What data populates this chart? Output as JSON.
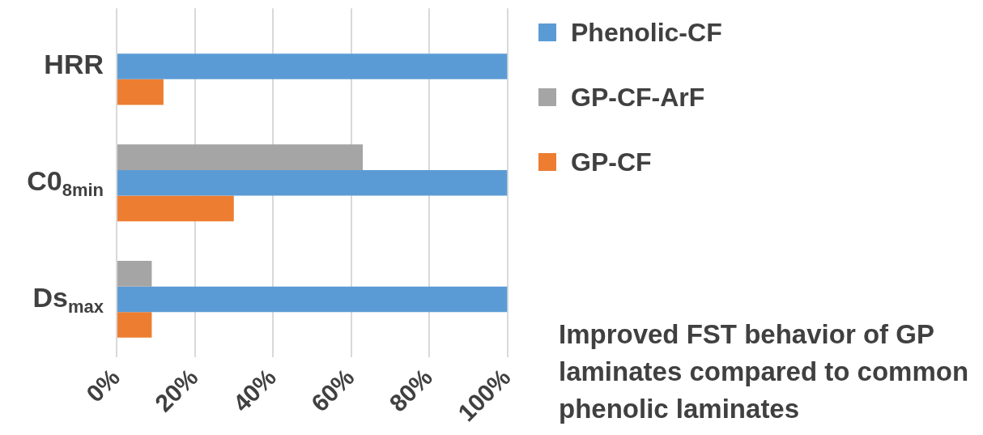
{
  "chart_data": {
    "type": "bar",
    "orientation": "horizontal",
    "categories": [
      "HRR",
      "C0$_{8min}$",
      "Ds$_{max}$"
    ],
    "series": [
      {
        "name": "Phenolic-CF",
        "color": "#5b9bd5",
        "values": [
          100,
          100,
          100
        ]
      },
      {
        "name": "GP-CF-ArF",
        "color": "#a5a5a5",
        "values": [
          null,
          63,
          9
        ]
      },
      {
        "name": "GP-CF",
        "color": "#ed7d31",
        "values": [
          12,
          30,
          9
        ]
      }
    ],
    "xlim": [
      0,
      100
    ],
    "xticks": [
      {
        "value": 0,
        "label": "0%"
      },
      {
        "value": 20,
        "label": "20%"
      },
      {
        "value": 40,
        "label": "40%"
      },
      {
        "value": 60,
        "label": "60%"
      },
      {
        "value": 80,
        "label": "80%"
      },
      {
        "value": 100,
        "label": "100%"
      }
    ],
    "grid": "x",
    "legend": "right",
    "annotations": [
      "Improved FST behavior of GP laminates compared to common phenolic laminates"
    ]
  }
}
